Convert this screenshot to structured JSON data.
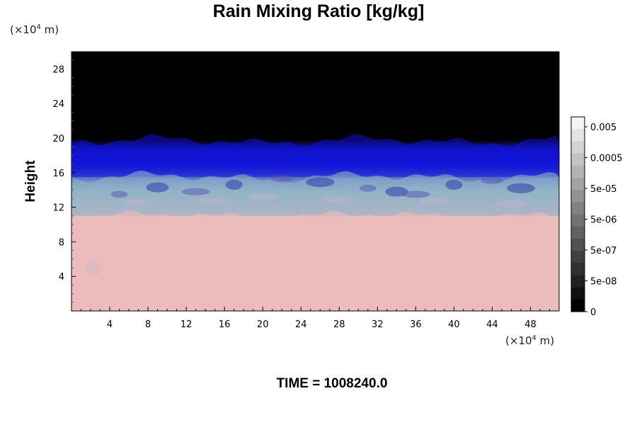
{
  "chart_data": {
    "type": "heatmap",
    "title": "Rain Mixing Ratio [kg/kg]",
    "ylabel": "Height",
    "x_unit": "(×10",
    "x_unit_exp": "4",
    "x_unit_tail": " m)",
    "y_unit": "(×10",
    "y_unit_exp": "4",
    "y_unit_tail": " m)",
    "xlim": [
      0,
      51
    ],
    "ylim": [
      0,
      30
    ],
    "x_ticks": [
      4,
      8,
      12,
      16,
      20,
      24,
      28,
      32,
      36,
      40,
      44,
      48
    ],
    "y_ticks": [
      4,
      8,
      12,
      16,
      20,
      24,
      28
    ],
    "colorbar": {
      "labels": [
        "0.005",
        "0.0005",
        "5e-05",
        "5e-06",
        "5e-07",
        "5e-08",
        "0"
      ],
      "levels": 16
    },
    "field_layers": [
      {
        "name": "upper",
        "from_height": 19.7,
        "to_height": 30,
        "color": "#000000"
      },
      {
        "name": "transition",
        "from_height": 15.5,
        "to_height": 19.7,
        "color": "#1212d8"
      },
      {
        "name": "mixed",
        "from_height": 11,
        "to_height": 15.5,
        "color": "#8fb0c8"
      },
      {
        "name": "lower",
        "from_height": 0,
        "to_height": 11,
        "color": "#ecbcbc"
      }
    ]
  },
  "time_label": "TIME = 1008240.0"
}
